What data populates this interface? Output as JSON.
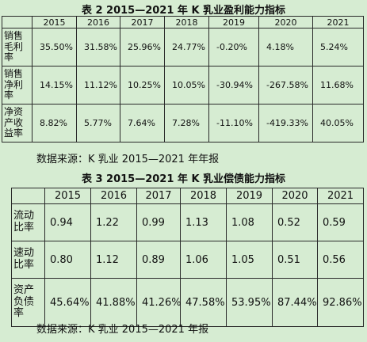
{
  "table2": {
    "caption": "表 2    2015—2021 年 K 乳业盈利能力指标",
    "years": [
      "2015",
      "2016",
      "2017",
      "2018",
      "2019",
      "2020",
      "2021"
    ],
    "rows": [
      {
        "label_lines": [
          "销售",
          "毛利",
          "率"
        ],
        "values": [
          "35.50%",
          "31.58%",
          "25.96%",
          "24.77%",
          "-0.20%",
          "4.18%",
          "5.24%"
        ]
      },
      {
        "label_lines": [
          "销售",
          "净利",
          "率"
        ],
        "values": [
          "14.15%",
          "11.12%",
          "10.25%",
          "10.05%",
          "-30.94%",
          "-267.58%",
          "11.68%"
        ]
      },
      {
        "label_lines": [
          "净资",
          "产收",
          "益率"
        ],
        "values": [
          "8.82%",
          "5.77%",
          "7.64%",
          "7.28%",
          "-11.10%",
          "-419.33%",
          "40.05%"
        ]
      }
    ],
    "source": "数据来源：K 乳业 2015—2021 年年报"
  },
  "table3": {
    "caption": "表 3    2015—2021 年 K 乳业偿债能力指标",
    "years": [
      "2015",
      "2016",
      "2017",
      "2018",
      "2019",
      "2020",
      "2021"
    ],
    "rows": [
      {
        "label_lines": [
          "流动",
          "比率"
        ],
        "values": [
          "0.94",
          "1.22",
          "0.99",
          "1.13",
          "1.08",
          "0.52",
          "0.59"
        ]
      },
      {
        "label_lines": [
          "速动",
          "比率"
        ],
        "values": [
          "0.80",
          "1.12",
          "0.89",
          "1.06",
          "1.05",
          "0.51",
          "0.56"
        ]
      },
      {
        "label_lines": [
          "资产",
          "负债",
          "率"
        ],
        "values": [
          "45.64%",
          "41.88%",
          "41.26%",
          "47.58%",
          "53.95%",
          "87.44%",
          "92.86%"
        ]
      }
    ],
    "source": "数据来源：K 乳业 2015—2021 年报"
  }
}
